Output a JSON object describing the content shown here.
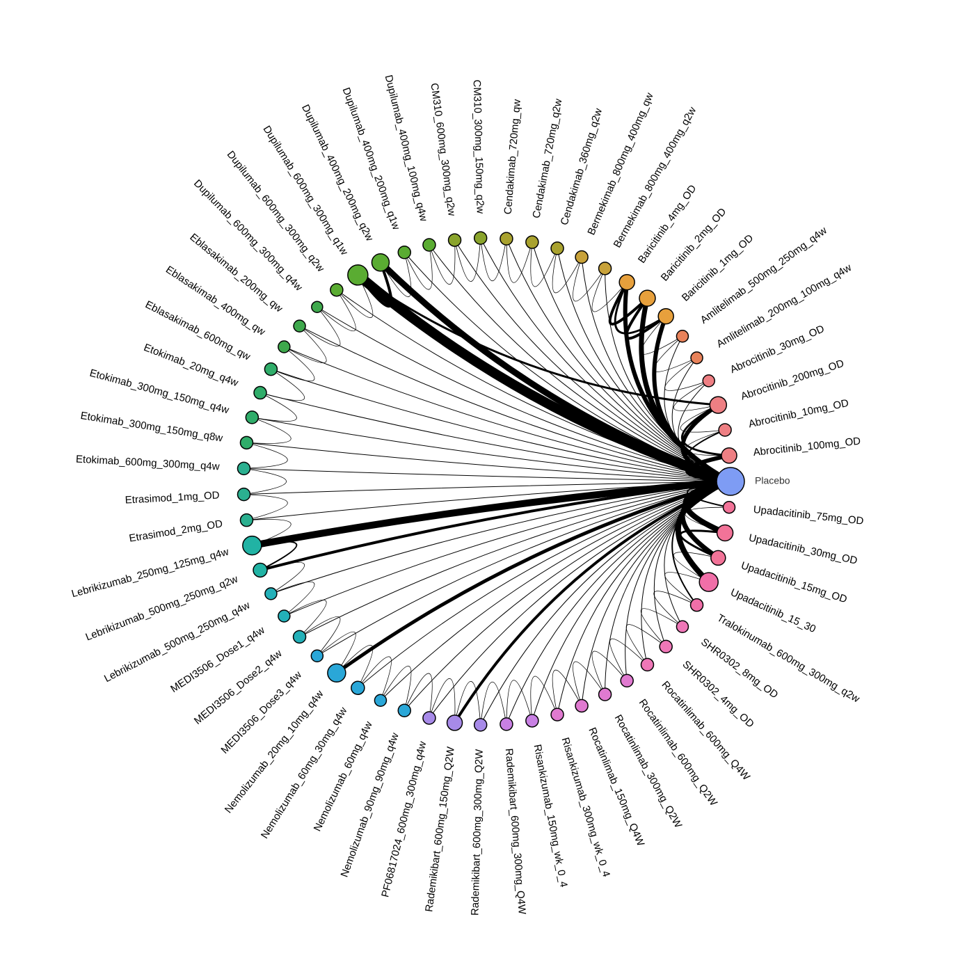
{
  "figure": {
    "type": "network_meta_analysis_circular"
  },
  "nodes": [
    {
      "id": "Placebo",
      "label": "Placebo",
      "angle": 0,
      "size": 3.0,
      "color": "#7e9cf4"
    },
    {
      "id": "Abrocitinib_100mg_OD",
      "label": "Abrocitinib_100mg_OD",
      "angle": 5.8,
      "size": 1.2,
      "color": "#ee7f83"
    },
    {
      "id": "Abrocitinib_10mg_OD",
      "label": "Abrocitinib_10mg_OD",
      "angle": 12.6,
      "size": 0.8,
      "color": "#ee7f83"
    },
    {
      "id": "Abrocitinib_200mg_OD",
      "label": "Abrocitinib_200mg_OD",
      "angle": 19.4,
      "size": 1.4,
      "color": "#ee7f83"
    },
    {
      "id": "Abrocitinib_30mg_OD",
      "label": "Abrocitinib_30mg_OD",
      "angle": 26.2,
      "size": 0.7,
      "color": "#ee7f83"
    },
    {
      "id": "Amlitelimab_200mg_100mg_q4w",
      "label": "Amlitelimab_200mg_100mg_q4w",
      "angle": 33.0,
      "size": 0.7,
      "color": "#e8825a"
    },
    {
      "id": "Amlitelimab_500mg_250mg_q4w",
      "label": "Amlitelimab_500mg_250mg_q4w",
      "angle": 39.8,
      "size": 0.7,
      "color": "#e8825a"
    },
    {
      "id": "Baricitinib_1mg_OD",
      "label": "Baricitinib_1mg_OD",
      "angle": 46.6,
      "size": 1.2,
      "color": "#e7a03c"
    },
    {
      "id": "Baricitinib_2mg_OD",
      "label": "Baricitinib_2mg_OD",
      "angle": 53.4,
      "size": 1.3,
      "color": "#e7a03c"
    },
    {
      "id": "Baricitinib_4mg_OD",
      "label": "Baricitinib_4mg_OD",
      "angle": 60.2,
      "size": 1.2,
      "color": "#e7a03c"
    },
    {
      "id": "Bermekimab_800mg_400mg_q2w",
      "label": "Bermekimab_800mg_400mg_q2w",
      "angle": 67.0,
      "size": 0.8,
      "color": "#c8a23a"
    },
    {
      "id": "Bermekimab_800mg_400mg_qw",
      "label": "Bermekimab_800mg_400mg_qw",
      "angle": 73.8,
      "size": 0.8,
      "color": "#c8a23a"
    },
    {
      "id": "Cendakimab_360mg_q2w",
      "label": "Cendakimab_360mg_q2w",
      "angle": 80.6,
      "size": 0.8,
      "color": "#a9a22f"
    },
    {
      "id": "Cendakimab_720mg_q2w",
      "label": "Cendakimab_720mg_q2w",
      "angle": 87.4,
      "size": 0.8,
      "color": "#a9a22f"
    },
    {
      "id": "Cendakimab_720mg_qw",
      "label": "Cendakimab_720mg_qw",
      "angle": 94.2,
      "size": 0.8,
      "color": "#a9a22f"
    },
    {
      "id": "CM310_300mg_150mg_q2w",
      "label": "CM310_300mg_150mg_q2w",
      "angle": 101.0,
      "size": 0.8,
      "color": "#8aa42c"
    },
    {
      "id": "CM310_600mg_300mg_q2w",
      "label": "CM310_600mg_300mg_q2w",
      "angle": 107.8,
      "size": 0.8,
      "color": "#8aa42c"
    },
    {
      "id": "Dupilumab_400mg_100mg_q4w",
      "label": "Dupilumab_400mg_100mg_q4w",
      "angle": 114.6,
      "size": 0.8,
      "color": "#5aac32"
    },
    {
      "id": "Dupilumab_400mg_200mg_q1w",
      "label": "Dupilumab_400mg_200mg_q1w",
      "angle": 121.4,
      "size": 0.8,
      "color": "#5aac32"
    },
    {
      "id": "Dupilumab_400mg_200mg_q2w",
      "label": "Dupilumab_400mg_200mg_q2w",
      "angle": 128.2,
      "size": 1.5,
      "color": "#5aac32"
    },
    {
      "id": "Dupilumab_600mg_300mg_q1w",
      "label": "Dupilumab_600mg_300mg_q1w",
      "angle": 135.0,
      "size": 1.9,
      "color": "#5aac32"
    },
    {
      "id": "Dupilumab_600mg_300mg_q2w",
      "label": "Dupilumab_600mg_300mg_q2w",
      "angle": 141.8,
      "size": 0.8,
      "color": "#5aac32"
    },
    {
      "id": "Dupilumab_600mg_300mg_q4w",
      "label": "Dupilumab_600mg_300mg_q4w",
      "angle": 148.6,
      "size": 0.6,
      "color": "#3ea84c"
    },
    {
      "id": "Eblasakimab_200mg_qw",
      "label": "Eblasakimab_200mg_qw",
      "angle": 155.4,
      "size": 0.7,
      "color": "#3ea84c"
    },
    {
      "id": "Eblasakimab_400mg_qw",
      "label": "Eblasakimab_400mg_qw",
      "angle": 162.2,
      "size": 0.7,
      "color": "#3ea84c"
    },
    {
      "id": "Eblasakimab_600mg_qw",
      "label": "Eblasakimab_600mg_qw",
      "angle": 169.0,
      "size": 0.8,
      "color": "#30ad6a"
    },
    {
      "id": "Etokimab_20mg_q4w",
      "label": "Etokimab_20mg_q4w",
      "angle": 175.8,
      "size": 0.8,
      "color": "#30ad6a"
    },
    {
      "id": "Etokimab_300mg_150mg_q4w",
      "label": "Etokimab_300mg_150mg_q4w",
      "angle": 182.6,
      "size": 0.8,
      "color": "#30ad6a"
    },
    {
      "id": "Etokimab_300mg_150mg_q8w",
      "label": "Etokimab_300mg_150mg_q8w",
      "angle": 189.4,
      "size": 0.8,
      "color": "#30ad6a"
    },
    {
      "id": "Etokimab_600mg_300mg_q4w",
      "label": "Etokimab_600mg_300mg_q4w",
      "angle": 196.2,
      "size": 0.8,
      "color": "#2bb090"
    },
    {
      "id": "Etrasimod_1mg_OD",
      "label": "Etrasimod_1mg_OD",
      "angle": 203.0,
      "size": 0.8,
      "color": "#2bb090"
    },
    {
      "id": "Etrasimod_2mg_OD",
      "label": "Etrasimod_2mg_OD",
      "angle": 209.8,
      "size": 0.8,
      "color": "#2bb090"
    },
    {
      "id": "Lebrikizumab_250mg_125mg_q4w",
      "label": "Lebrikizumab_250mg_125mg_q4w",
      "angle": 216.6,
      "size": 1.7,
      "color": "#21b3a4"
    },
    {
      "id": "Lebrikizumab_500mg_250mg_q2w",
      "label": "Lebrikizumab_500mg_250mg_q2w",
      "angle": 223.4,
      "size": 1.0,
      "color": "#21b3a4"
    },
    {
      "id": "Lebrikizumab_500mg_250mg_q4w",
      "label": "Lebrikizumab_500mg_250mg_q4w",
      "angle": 230.2,
      "size": 0.7,
      "color": "#23b0b8"
    },
    {
      "id": "MEDI3506_Dose1_q4w",
      "label": "MEDI3506_Dose1_q4w",
      "angle": 237.0,
      "size": 0.7,
      "color": "#23b0b8"
    },
    {
      "id": "MEDI3506_Dose2_q4w",
      "label": "MEDI3506_Dose2_q4w",
      "angle": 243.8,
      "size": 0.8,
      "color": "#23b0b8"
    },
    {
      "id": "MEDI3506_Dose3_q4w",
      "label": "MEDI3506_Dose3_q4w",
      "angle": 250.6,
      "size": 0.7,
      "color": "#2aa7d8"
    },
    {
      "id": "Nemolizumab_20mg_10mg_q4w",
      "label": "Nemolizumab_20mg_10mg_q4w",
      "angle": 257.4,
      "size": 1.6,
      "color": "#2aa7d8"
    },
    {
      "id": "Nemolizumab_60mg_30mg_q4w",
      "label": "Nemolizumab_60mg_30mg_q4w",
      "angle": 264.2,
      "size": 0.9,
      "color": "#2aa7d8"
    },
    {
      "id": "Nemolizumab_60mg_q4w",
      "label": "Nemolizumab_60mg_q4w",
      "angle": 271.0,
      "size": 0.7,
      "color": "#2aa7d8"
    },
    {
      "id": "Nemolizumab_90mg_90mg_q4w",
      "label": "Nemolizumab_90mg_90mg_q4w",
      "angle": 277.8,
      "size": 0.8,
      "color": "#2aa7d8"
    },
    {
      "id": "PF06817024_600mg_300mg_q4w",
      "label": "PF06817024_600mg_300mg_q4w",
      "angle": 284.6,
      "size": 0.8,
      "color": "#a78ae8"
    },
    {
      "id": "Rademikibart_600mg_150mg_Q2W",
      "label": "Rademikibart_600mg_150mg_Q2W",
      "angle": 291.4,
      "size": 1.2,
      "color": "#a78ae8"
    },
    {
      "id": "Rademikibart_600mg_300mg_Q2W",
      "label": "Rademikibart_600mg_300mg_Q2W",
      "angle": 298.2,
      "size": 0.8,
      "color": "#a78ae8"
    },
    {
      "id": "Rademikibart_600mg_300mg_Q4W",
      "label": "Rademikibart_600mg_300mg_Q4W",
      "angle": 305.0,
      "size": 0.8,
      "color": "#c880e3"
    },
    {
      "id": "Risankizumab_150mg_wk_0_4",
      "label": "Risankizumab_150mg_wk_0_4",
      "angle": 311.8,
      "size": 0.8,
      "color": "#c880e3"
    },
    {
      "id": "Risankizumab_300mg_wk_0_4",
      "label": "Risankizumab_300mg_wk_0_4",
      "angle": 318.6,
      "size": 0.8,
      "color": "#e07ad0"
    },
    {
      "id": "Rocatinlimab_150mg_Q4W",
      "label": "Rocatinlimab_150mg_Q4W",
      "angle": 325.4,
      "size": 0.8,
      "color": "#e07ad0"
    },
    {
      "id": "Rocatinlimab_300mg_Q2W",
      "label": "Rocatinlimab_300mg_Q2W",
      "angle": 332.2,
      "size": 0.8,
      "color": "#e07ad0"
    },
    {
      "id": "Rocatinlimab_600mg_Q2W",
      "label": "Rocatinlimab_600mg_Q2W",
      "angle": 339.0,
      "size": 0.8,
      "color": "#e07ad0"
    },
    {
      "id": "Rocatinlimab_600mg_Q4W",
      "label": "Rocatinlimab_600mg_Q4W",
      "angle": 345.8,
      "size": 0.8,
      "color": "#ef77b7"
    },
    {
      "id": "SHR0302_4mg_OD",
      "label": "SHR0302_4mg_OD",
      "angle": 352.6,
      "size": 0.8,
      "color": "#ef77b7"
    }
  ],
  "extra_nodes": [
    {
      "id": "SHR0302_8mg_OD",
      "label": "SHR0302_8mg_OD",
      "angle": 322.0,
      "size": 0.7,
      "color": "#ef77b7"
    },
    {
      "id": "Tralokinumab_600mg_300mg_q2w",
      "label": "Tralokinumab_600mg_300mg_q2w",
      "angle": 330.0,
      "size": 0.8,
      "color": "#f06fa8"
    },
    {
      "id": "Upadacitinib_15_30",
      "label": "Upadacitinib_15_30",
      "angle": 337.0,
      "size": 1.7,
      "color": "#f06fa8"
    },
    {
      "id": "Upadacitinib_15mg_OD",
      "label": "Upadacitinib_15mg_OD",
      "angle": 344.0,
      "size": 1.1,
      "color": "#f27398"
    },
    {
      "id": "Upadacitinib_30mg_OD",
      "label": "Upadacitinib_30mg_OD",
      "angle": 350.0,
      "size": 1.3,
      "color": "#f27398"
    },
    {
      "id": "Upadacitinib_75mg_OD",
      "label": "Upadacitinib_75mg_OD",
      "angle": 356.0,
      "size": 0.7,
      "color": "#f27398"
    }
  ],
  "edges": [
    {
      "a": "Placebo",
      "b": "Dupilumab_600mg_300mg_q1w",
      "w": 14
    },
    {
      "a": "Placebo",
      "b": "Dupilumab_400mg_200mg_q2w",
      "w": 9
    },
    {
      "a": "Placebo",
      "b": "Lebrikizumab_250mg_125mg_q4w",
      "w": 10
    },
    {
      "a": "Placebo",
      "b": "Lebrikizumab_500mg_250mg_q2w",
      "w": 4
    },
    {
      "a": "Placebo",
      "b": "Nemolizumab_20mg_10mg_q4w",
      "w": 5
    },
    {
      "a": "Placebo",
      "b": "Rademikibart_600mg_150mg_Q2W",
      "w": 4
    },
    {
      "a": "Placebo",
      "b": "Baricitinib_1mg_OD",
      "w": 6
    },
    {
      "a": "Placebo",
      "b": "Baricitinib_2mg_OD",
      "w": 7
    },
    {
      "a": "Placebo",
      "b": "Baricitinib_4mg_OD",
      "w": 6
    },
    {
      "a": "Placebo",
      "b": "Abrocitinib_100mg_OD",
      "w": 6
    },
    {
      "a": "Placebo",
      "b": "Abrocitinib_200mg_OD",
      "w": 6
    },
    {
      "a": "Placebo",
      "b": "Abrocitinib_10mg_OD",
      "w": 2
    },
    {
      "a": "Placebo",
      "b": "Abrocitinib_30mg_OD",
      "w": 1
    },
    {
      "a": "Placebo",
      "b": "Upadacitinib_15mg_OD",
      "w": 7
    },
    {
      "a": "Placebo",
      "b": "Upadacitinib_30mg_OD",
      "w": 8
    },
    {
      "a": "Placebo",
      "b": "Upadacitinib_75mg_OD",
      "w": 2
    },
    {
      "a": "Placebo",
      "b": "Upadacitinib_15_30",
      "w": 8
    },
    {
      "a": "Placebo",
      "b": "Tralokinumab_600mg_300mg_q2w",
      "w": 2
    },
    {
      "a": "Abrocitinib_200mg_OD",
      "b": "Dupilumab_600mg_300mg_q1w",
      "w": 3
    },
    {
      "a": "Baricitinib_1mg_OD",
      "b": "Baricitinib_2mg_OD",
      "w": 4
    },
    {
      "a": "Baricitinib_2mg_OD",
      "b": "Baricitinib_4mg_OD",
      "w": 4
    },
    {
      "a": "Baricitinib_1mg_OD",
      "b": "Baricitinib_4mg_OD",
      "w": 3
    },
    {
      "a": "Lebrikizumab_250mg_125mg_q4w",
      "b": "Lebrikizumab_500mg_250mg_q2w",
      "w": 2
    },
    {
      "a": "Dupilumab_600mg_300mg_q1w",
      "b": "Dupilumab_400mg_200mg_q2w",
      "w": 4
    },
    {
      "a": "Upadacitinib_15mg_OD",
      "b": "Upadacitinib_30mg_OD",
      "w": 3
    },
    {
      "a": "Abrocitinib_100mg_OD",
      "b": "Abrocitinib_200mg_OD",
      "w": 3
    }
  ]
}
